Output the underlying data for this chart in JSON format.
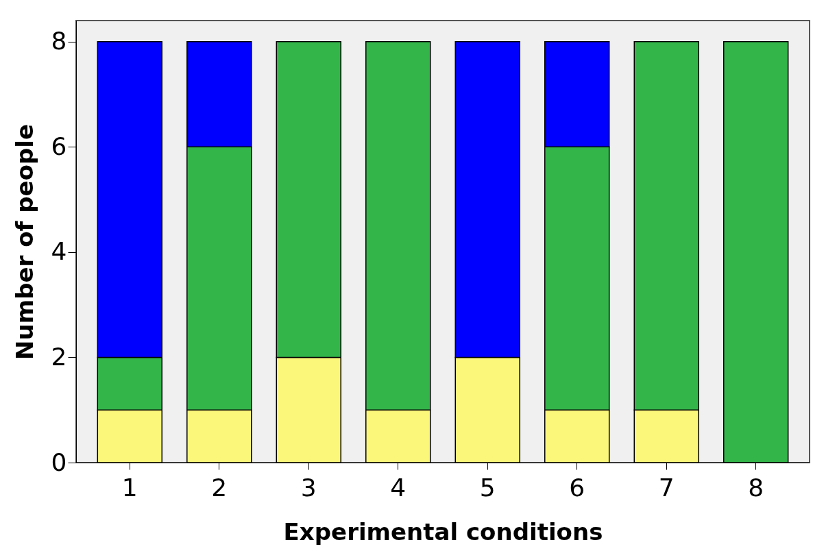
{
  "chart_data": {
    "type": "bar",
    "stacked": true,
    "xlabel": "Experimental conditions",
    "ylabel": "Number of people",
    "categories": [
      "1",
      "2",
      "3",
      "4",
      "5",
      "6",
      "7",
      "8"
    ],
    "series": [
      {
        "color": "#fbf77b",
        "values": [
          1,
          1,
          2,
          1,
          2,
          1,
          1,
          0
        ]
      },
      {
        "color": "#33b54a",
        "values": [
          1,
          5,
          6,
          7,
          0,
          5,
          7,
          8
        ]
      },
      {
        "color": "#0000ff",
        "values": [
          6,
          2,
          0,
          0,
          6,
          2,
          0,
          0
        ]
      }
    ],
    "ylim": [
      0,
      8.4
    ],
    "yticks": [
      0,
      2,
      4,
      6,
      8
    ],
    "grid": false,
    "legend": false
  }
}
